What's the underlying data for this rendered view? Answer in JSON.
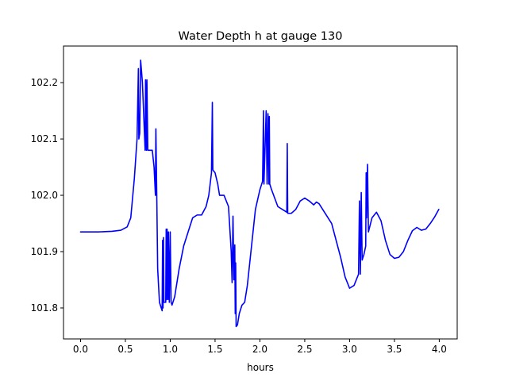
{
  "chart_data": {
    "type": "line",
    "title": "Water Depth h at gauge 130",
    "xlabel": "hours",
    "ylabel": "",
    "xlim": [
      -0.19,
      4.2
    ],
    "ylim": [
      101.745,
      102.265
    ],
    "xticks": [
      0.0,
      0.5,
      1.0,
      1.5,
      2.0,
      2.5,
      3.0,
      3.5,
      4.0
    ],
    "xtick_labels": [
      "0.0",
      "0.5",
      "1.0",
      "1.5",
      "2.0",
      "2.5",
      "3.0",
      "3.5",
      "4.0"
    ],
    "yticks": [
      101.8,
      101.9,
      102.0,
      102.1,
      102.2
    ],
    "ytick_labels": [
      "101.8",
      "101.9",
      "102.0",
      "102.1",
      "102.2"
    ],
    "grid": false,
    "series": [
      {
        "color": "#0000ff",
        "points": [
          [
            0.0,
            101.935
          ],
          [
            0.2,
            101.935
          ],
          [
            0.35,
            101.936
          ],
          [
            0.45,
            101.938
          ],
          [
            0.52,
            101.944
          ],
          [
            0.56,
            101.96
          ],
          [
            0.6,
            102.03
          ],
          [
            0.63,
            102.1
          ],
          [
            0.645,
            102.225
          ],
          [
            0.65,
            102.1
          ],
          [
            0.66,
            102.11
          ],
          [
            0.67,
            102.24
          ],
          [
            0.69,
            102.2
          ],
          [
            0.72,
            102.08
          ],
          [
            0.725,
            102.205
          ],
          [
            0.735,
            102.08
          ],
          [
            0.74,
            102.205
          ],
          [
            0.75,
            102.08
          ],
          [
            0.8,
            102.08
          ],
          [
            0.82,
            102.05
          ],
          [
            0.835,
            102.0
          ],
          [
            0.84,
            102.118
          ],
          [
            0.85,
            102.0
          ],
          [
            0.86,
            101.87
          ],
          [
            0.88,
            101.81
          ],
          [
            0.9,
            101.8
          ],
          [
            0.91,
            101.795
          ],
          [
            0.915,
            101.92
          ],
          [
            0.92,
            101.8
          ],
          [
            0.925,
            101.925
          ],
          [
            0.93,
            101.81
          ],
          [
            0.95,
            101.81
          ],
          [
            0.955,
            101.94
          ],
          [
            0.96,
            101.815
          ],
          [
            0.965,
            101.94
          ],
          [
            0.975,
            101.815
          ],
          [
            0.98,
            101.935
          ],
          [
            0.99,
            101.81
          ],
          [
            1.0,
            101.935
          ],
          [
            1.01,
            101.81
          ],
          [
            1.02,
            101.805
          ],
          [
            1.05,
            101.82
          ],
          [
            1.1,
            101.87
          ],
          [
            1.15,
            101.91
          ],
          [
            1.2,
            101.935
          ],
          [
            1.25,
            101.96
          ],
          [
            1.3,
            101.965
          ],
          [
            1.35,
            101.965
          ],
          [
            1.4,
            101.98
          ],
          [
            1.43,
            102.0
          ],
          [
            1.46,
            102.04
          ],
          [
            1.47,
            102.165
          ],
          [
            1.475,
            102.045
          ],
          [
            1.5,
            102.04
          ],
          [
            1.53,
            102.02
          ],
          [
            1.55,
            102.0
          ],
          [
            1.6,
            102.0
          ],
          [
            1.65,
            101.98
          ],
          [
            1.68,
            101.9
          ],
          [
            1.69,
            101.845
          ],
          [
            1.7,
            101.963
          ],
          [
            1.71,
            101.85
          ],
          [
            1.72,
            101.912
          ],
          [
            1.725,
            101.79
          ],
          [
            1.73,
            101.88
          ],
          [
            1.735,
            101.767
          ],
          [
            1.75,
            101.77
          ],
          [
            1.77,
            101.79
          ],
          [
            1.8,
            101.805
          ],
          [
            1.83,
            101.81
          ],
          [
            1.86,
            101.84
          ],
          [
            1.9,
            101.9
          ],
          [
            1.95,
            101.975
          ],
          [
            2.0,
            102.01
          ],
          [
            2.03,
            102.025
          ],
          [
            2.04,
            102.15
          ],
          [
            2.045,
            102.02
          ],
          [
            2.07,
            102.15
          ],
          [
            2.08,
            102.02
          ],
          [
            2.09,
            102.145
          ],
          [
            2.1,
            102.02
          ],
          [
            2.105,
            102.14
          ],
          [
            2.11,
            102.02
          ],
          [
            2.13,
            102.01
          ],
          [
            2.2,
            101.98
          ],
          [
            2.25,
            101.975
          ],
          [
            2.3,
            101.97
          ],
          [
            2.305,
            102.092
          ],
          [
            2.31,
            101.968
          ],
          [
            2.35,
            101.968
          ],
          [
            2.4,
            101.975
          ],
          [
            2.45,
            101.99
          ],
          [
            2.5,
            101.995
          ],
          [
            2.55,
            101.99
          ],
          [
            2.6,
            101.983
          ],
          [
            2.63,
            101.988
          ],
          [
            2.66,
            101.985
          ],
          [
            2.7,
            101.975
          ],
          [
            2.8,
            101.95
          ],
          [
            2.9,
            101.89
          ],
          [
            2.95,
            101.855
          ],
          [
            3.0,
            101.835
          ],
          [
            3.05,
            101.84
          ],
          [
            3.1,
            101.86
          ],
          [
            3.11,
            101.99
          ],
          [
            3.12,
            101.86
          ],
          [
            3.13,
            102.005
          ],
          [
            3.14,
            101.885
          ],
          [
            3.16,
            101.895
          ],
          [
            3.18,
            101.91
          ],
          [
            3.185,
            102.04
          ],
          [
            3.19,
            101.96
          ],
          [
            3.2,
            102.055
          ],
          [
            3.21,
            101.935
          ],
          [
            3.25,
            101.96
          ],
          [
            3.3,
            101.97
          ],
          [
            3.35,
            101.955
          ],
          [
            3.4,
            101.92
          ],
          [
            3.45,
            101.895
          ],
          [
            3.5,
            101.888
          ],
          [
            3.55,
            101.89
          ],
          [
            3.6,
            101.9
          ],
          [
            3.65,
            101.92
          ],
          [
            3.7,
            101.937
          ],
          [
            3.75,
            101.943
          ],
          [
            3.8,
            101.938
          ],
          [
            3.85,
            101.94
          ],
          [
            3.9,
            101.95
          ],
          [
            3.95,
            101.962
          ],
          [
            3.995,
            101.975
          ]
        ]
      }
    ]
  }
}
